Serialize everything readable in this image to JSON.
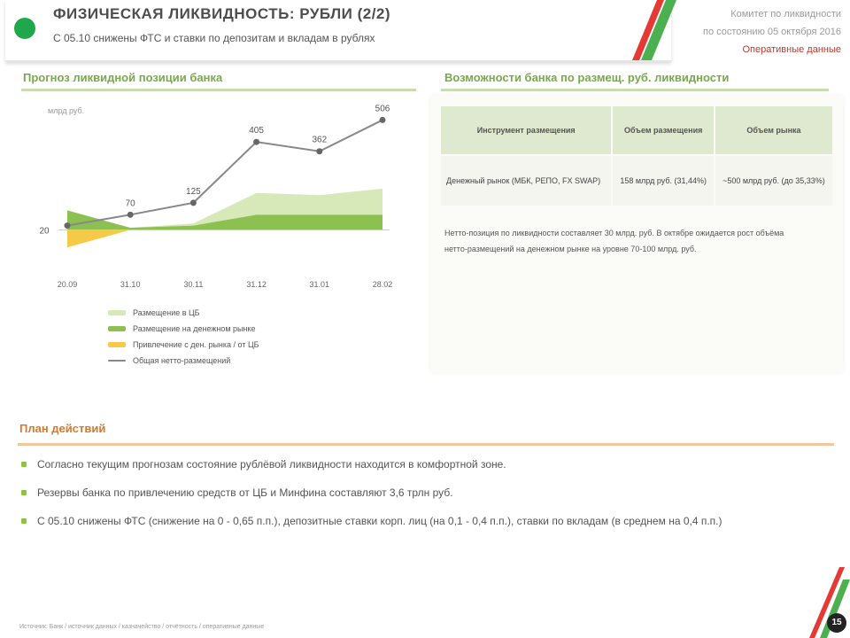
{
  "header": {
    "title": "ФИЗИЧЕСКАЯ ЛИКВИДНОСТЬ: РУБЛИ (2/2)",
    "subtitle": "С 05.10 снижены ФТС и ставки по депозитам и вкладам в рублях",
    "right_line1": "Комитет по ликвидности",
    "right_line2": "по состоянию 05 октября 2016",
    "right_line3": "Оперативные данные",
    "colors": {
      "accent": "#1fa84b",
      "stripe_green": "#4caf50",
      "stripe_red": "#e53935"
    }
  },
  "chart_section_title": "Прогноз ликвидной позиции банка",
  "table_section_title": "Возможности банка по размещ. руб. ликвидности",
  "chart_data": {
    "type": "area",
    "title": "",
    "unit_label": "млрд руб.",
    "categories": [
      "20.09",
      "31.10",
      "30.11",
      "31.12",
      "31.01",
      "28.02"
    ],
    "series": [
      {
        "name": "Размещение в ЦБ",
        "type": "area",
        "values": [
          0,
          0,
          10,
          100,
          90,
          120
        ],
        "color": "#d7e8b9"
      },
      {
        "name": "Размещение на денежном рынке",
        "type": "area",
        "values": [
          90,
          10,
          20,
          70,
          70,
          70
        ],
        "color": "#8cc152"
      },
      {
        "name": "Привлечение с ден. рынка / от ЦБ",
        "type": "area",
        "values": [
          -80,
          0,
          0,
          0,
          0,
          0
        ],
        "color": "#f7c948"
      },
      {
        "name": "Общая нетто-размещений",
        "type": "line",
        "values": [
          20,
          70,
          125,
          405,
          362,
          506
        ],
        "color": "#888888"
      }
    ],
    "data_labels": [
      "20",
      "70",
      "125",
      "405",
      "362",
      "506"
    ],
    "ylim": [
      -100,
      520
    ],
    "grid": false,
    "legend_position": "bottom"
  },
  "legend_labels": [
    "Размещение в ЦБ",
    "Размещение на денежном рынке",
    "Привлечение с ден. рынка / от ЦБ",
    "Общая нетто-размещений"
  ],
  "table": {
    "headers": [
      "Инструмент размещения",
      "Объем размещения",
      "Объем рынка"
    ],
    "rows": [
      [
        "Денежный рынок (МБК, РЕПО, FX SWAP)",
        "158 млрд руб. (31,44%)",
        "~500 млрд руб. (до 35,33%)"
      ]
    ]
  },
  "panel_note": "Нетто-позиция по ликвидности составляет 30 млрд. руб. В октябре ожидается рост объёма нетто-размещений на денежном рынке на уровне 70-100 млрд. руб.",
  "plan": {
    "title": "План действий",
    "bullets": [
      "Согласно текущим прогнозам состояние рублёвой ликвидности находится в комфортной зоне.",
      "Резервы банка по привлечению средств от ЦБ и Минфина составляют 3,6 трлн руб.",
      "С 05.10 снижены ФТС (снижение на 0 - 0,65 п.п.), депозитные ставки корп. лиц (на 0,1 - 0,4 п.п.), ставки по вкладам (в среднем на 0,4 п.п.)"
    ]
  },
  "footer": "Источник: Банк / источник данных / казначейство / отчётность / оперативные данные",
  "page_number": "15"
}
